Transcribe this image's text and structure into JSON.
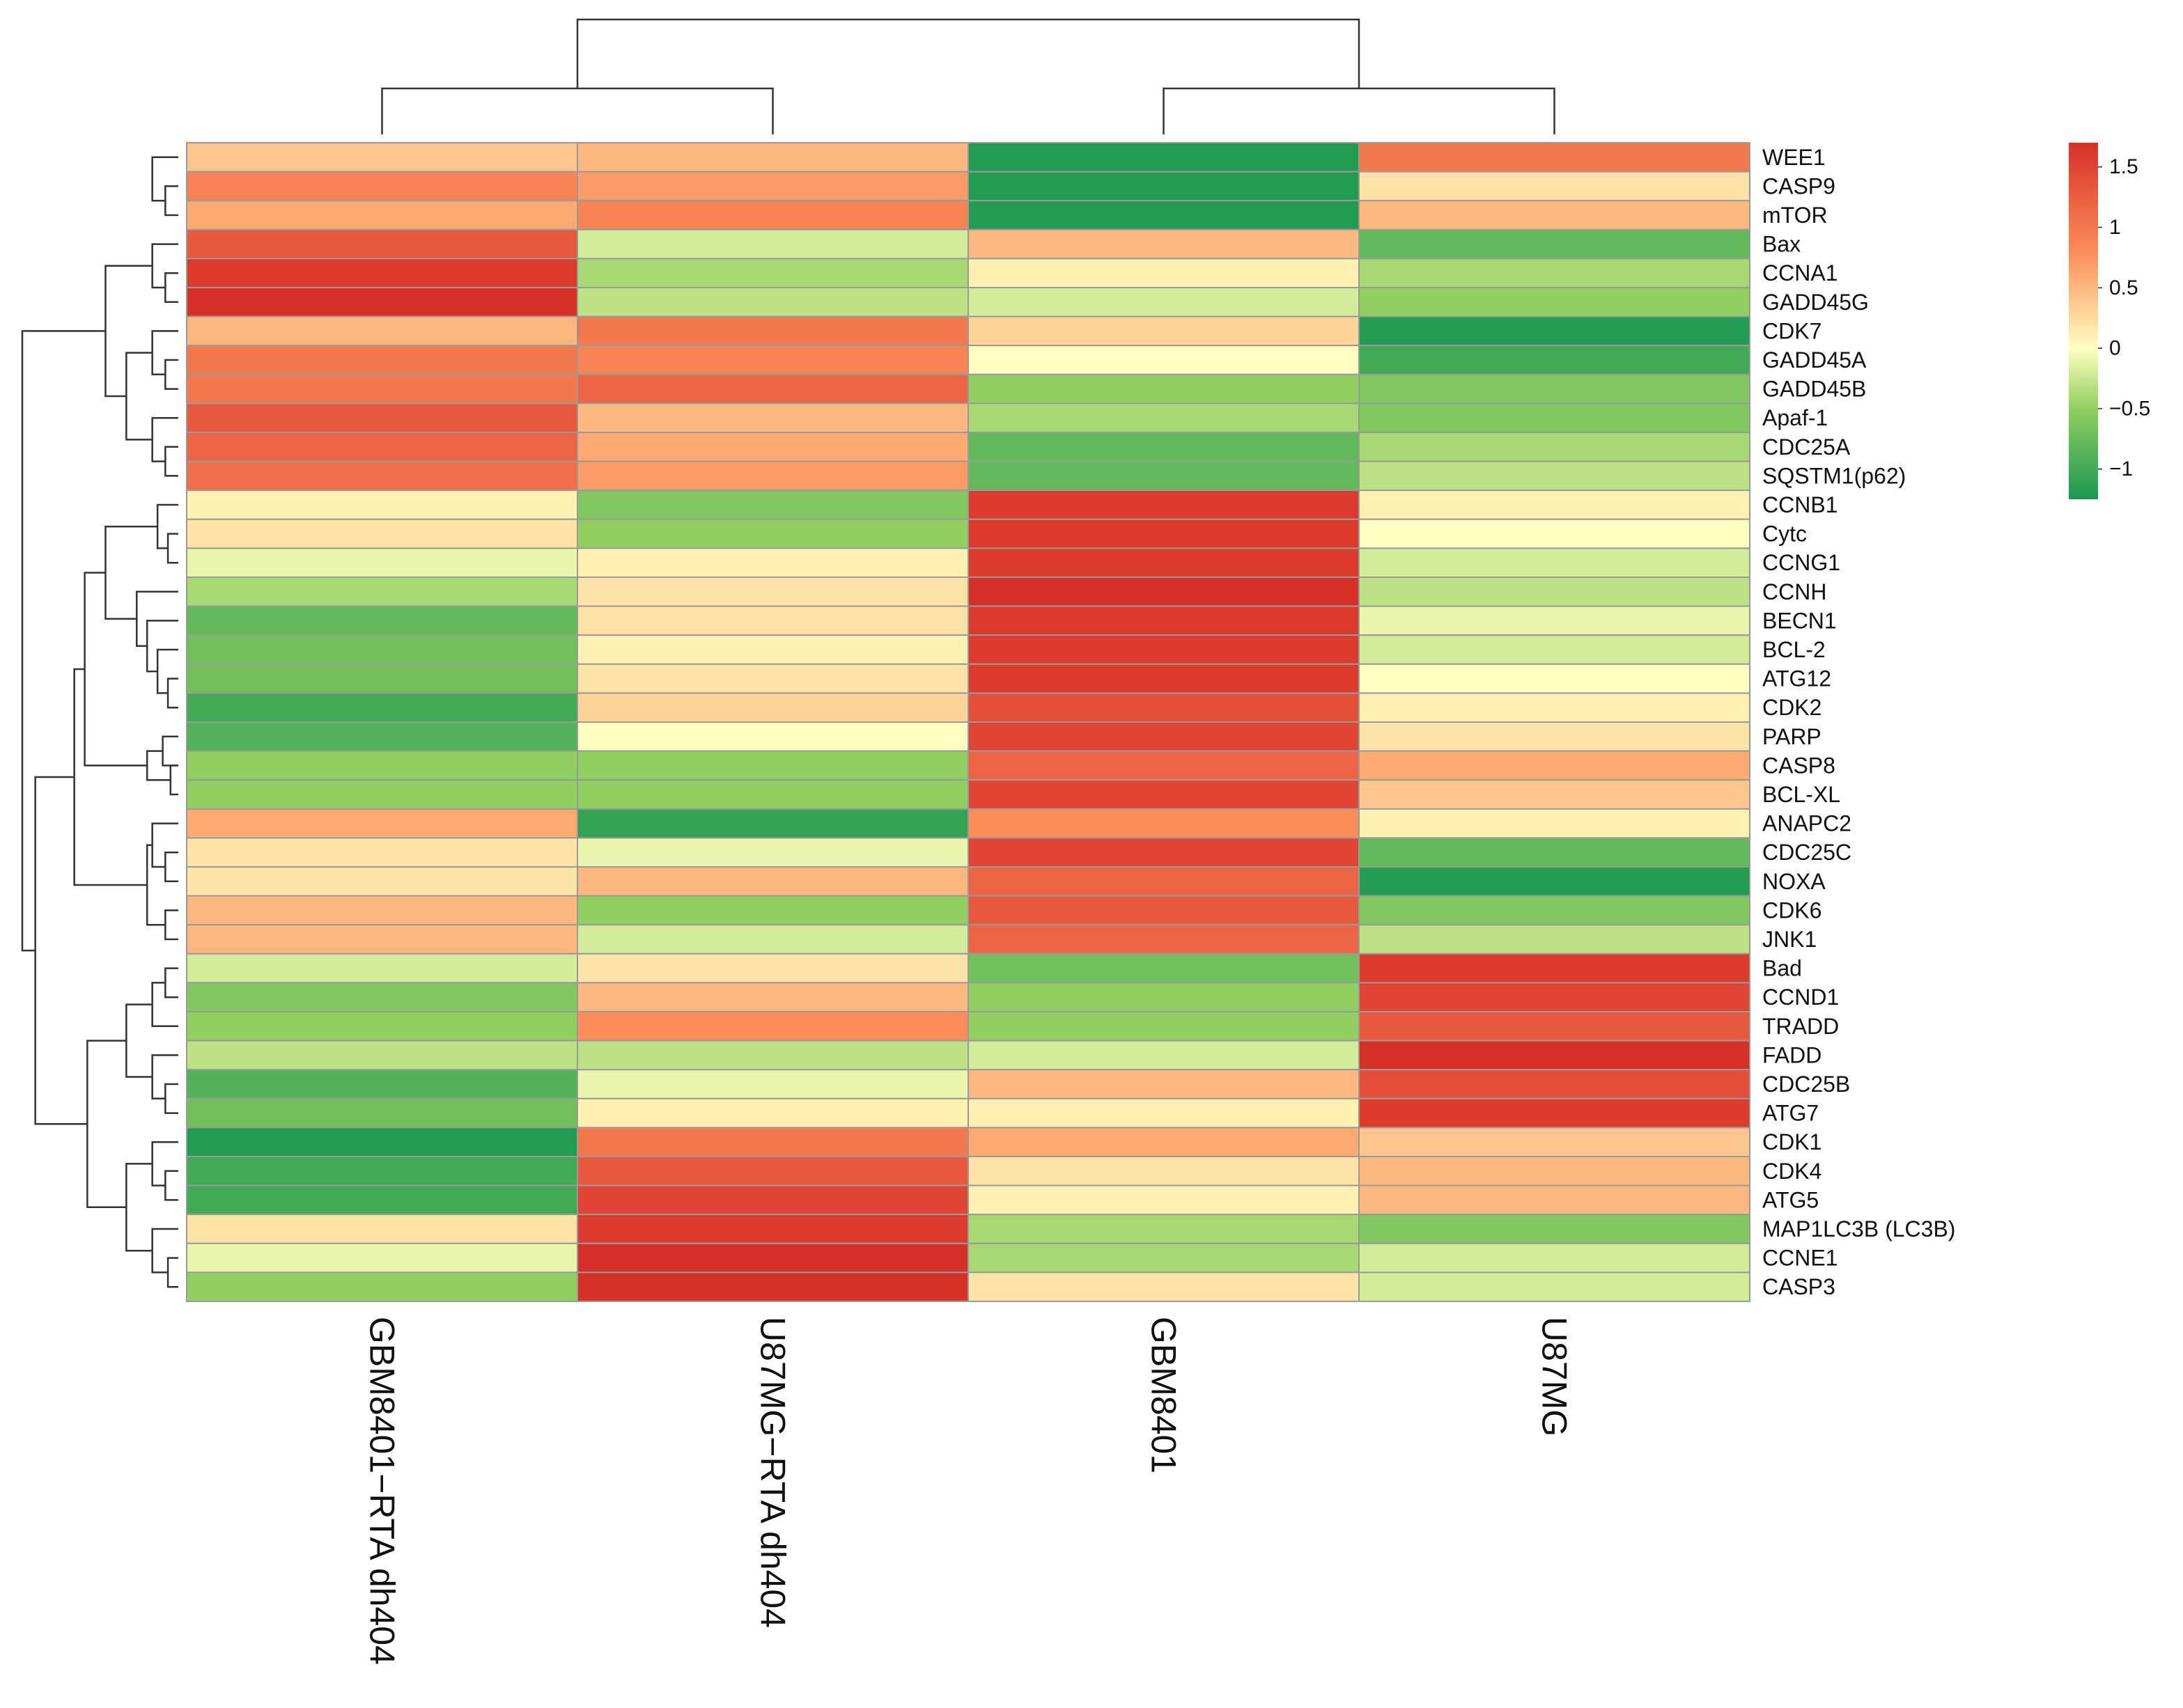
{
  "chart_data": {
    "type": "heatmap",
    "title": "",
    "columns": [
      "GBM8401−RTA dh404",
      "U87MG−RTA dh404",
      "GBM8401",
      "U87MG"
    ],
    "rows": [
      "WEE1",
      "CASP9",
      "mTOR",
      "Bax",
      "CCNA1",
      "GADD45G",
      "CDK7",
      "GADD45A",
      "GADD45B",
      "Apaf-1",
      "CDC25A",
      "SQSTM1(p62)",
      "CCNB1",
      "Cytc",
      "CCNG1",
      "CCNH",
      "BECN1",
      "BCL-2",
      "ATG12",
      "CDK2",
      "PARP",
      "CASP8",
      "BCL-XL",
      "ANAPC2",
      "CDC25C",
      "NOXA",
      "CDK6",
      "JNK1",
      "Bad",
      "CCND1",
      "TRADD",
      "FADD",
      "CDC25B",
      "ATG7",
      "CDK1",
      "CDK4",
      "ATG5",
      "MAP1LC3B (LC3B)",
      "CCNE1",
      "CASP3"
    ],
    "values": [
      [
        0.4,
        0.5,
        -1.2,
        1.0
      ],
      [
        0.9,
        0.7,
        -1.2,
        0.2
      ],
      [
        0.6,
        0.9,
        -1.2,
        0.5
      ],
      [
        1.3,
        -0.2,
        0.5,
        -0.8
      ],
      [
        1.6,
        -0.4,
        0.1,
        -0.4
      ],
      [
        1.7,
        -0.3,
        -0.2,
        -0.5
      ],
      [
        0.5,
        1.0,
        0.3,
        -1.2
      ],
      [
        1.0,
        0.9,
        0.0,
        -1.0
      ],
      [
        1.0,
        1.2,
        -0.5,
        -0.6
      ],
      [
        1.3,
        0.5,
        -0.4,
        -0.6
      ],
      [
        1.2,
        0.6,
        -0.8,
        -0.4
      ],
      [
        1.1,
        0.7,
        -0.8,
        -0.3
      ],
      [
        0.1,
        -0.6,
        1.6,
        0.1
      ],
      [
        0.2,
        -0.5,
        1.6,
        0.0
      ],
      [
        -0.1,
        0.1,
        1.6,
        -0.2
      ],
      [
        -0.4,
        0.2,
        1.7,
        -0.3
      ],
      [
        -0.8,
        0.2,
        1.6,
        -0.1
      ],
      [
        -0.7,
        0.1,
        1.6,
        -0.2
      ],
      [
        -0.7,
        0.2,
        1.6,
        0.0
      ],
      [
        -1.0,
        0.3,
        1.4,
        0.1
      ],
      [
        -0.9,
        0.0,
        1.5,
        0.2
      ],
      [
        -0.5,
        -0.5,
        1.2,
        0.6
      ],
      [
        -0.5,
        -0.5,
        1.5,
        0.4
      ],
      [
        0.6,
        -1.1,
        0.8,
        0.1
      ],
      [
        0.2,
        -0.1,
        1.5,
        -0.8
      ],
      [
        0.2,
        0.5,
        1.2,
        -1.2
      ],
      [
        0.5,
        -0.5,
        1.3,
        -0.6
      ],
      [
        0.5,
        -0.2,
        1.2,
        -0.3
      ],
      [
        -0.2,
        0.2,
        -0.7,
        1.6
      ],
      [
        -0.6,
        0.5,
        -0.5,
        1.5
      ],
      [
        -0.5,
        0.8,
        -0.5,
        1.3
      ],
      [
        -0.3,
        -0.3,
        -0.2,
        1.7
      ],
      [
        -0.9,
        -0.1,
        0.5,
        1.4
      ],
      [
        -0.7,
        0.1,
        0.1,
        1.6
      ],
      [
        -1.2,
        1.0,
        0.6,
        0.4
      ],
      [
        -1.0,
        1.3,
        0.2,
        0.5
      ],
      [
        -1.0,
        1.5,
        0.1,
        0.5
      ],
      [
        0.2,
        1.6,
        -0.4,
        -0.6
      ],
      [
        -0.1,
        1.7,
        -0.4,
        -0.2
      ],
      [
        -0.5,
        1.7,
        0.2,
        -0.2
      ]
    ],
    "color_scale": {
      "min": -1.25,
      "max": 1.7,
      "stops": [
        {
          "value": -1.25,
          "color": "#1a9850"
        },
        {
          "value": -0.5,
          "color": "#91cf60"
        },
        {
          "value": 0,
          "color": "#ffffbf"
        },
        {
          "value": 0.8,
          "color": "#fc8d59"
        },
        {
          "value": 1.7,
          "color": "#d73027"
        }
      ]
    },
    "legend_ticks": [
      1.5,
      1,
      0.5,
      0,
      -0.5,
      -1
    ],
    "legend_tick_labels": [
      "1.5",
      "1",
      "0.5",
      "0",
      "−0.5",
      "−1"
    ],
    "legend_placement": "top-right",
    "column_dendrogram": {
      "merges": [
        [
          0,
          1
        ],
        [
          2,
          3
        ],
        [
          -1,
          -2
        ]
      ],
      "heights": [
        0.4,
        0.4,
        1.0
      ]
    },
    "row_dendrogram": {
      "merges": [
        [
          1,
          2
        ],
        [
          -1,
          0
        ],
        [
          4,
          5
        ],
        [
          -3,
          3
        ],
        [
          7,
          8
        ],
        [
          6,
          -5
        ],
        [
          10,
          11
        ],
        [
          9,
          -7
        ],
        [
          -6,
          -8
        ],
        [
          -4,
          -9
        ],
        [
          13,
          14
        ],
        [
          12,
          -11
        ],
        [
          18,
          19
        ],
        [
          17,
          -13
        ],
        [
          16,
          -14
        ],
        [
          15,
          -15
        ],
        [
          -12,
          -16
        ],
        [
          21,
          22
        ],
        [
          20,
          21
        ],
        [
          -18,
          -19
        ],
        [
          24,
          25
        ],
        [
          23,
          -21
        ],
        [
          26,
          27
        ],
        [
          -22,
          -23
        ],
        [
          -17,
          -20
        ],
        [
          -25,
          -24
        ],
        [
          28,
          29
        ],
        [
          -27,
          30
        ],
        [
          32,
          33
        ],
        [
          31,
          -29
        ],
        [
          -28,
          -30
        ],
        [
          35,
          36
        ],
        [
          34,
          -32
        ],
        [
          38,
          39
        ],
        [
          37,
          -34
        ],
        [
          -33,
          -35
        ],
        [
          -31,
          -36
        ],
        [
          -26,
          -37
        ],
        [
          -10,
          -38
        ]
      ],
      "heights": [
        0.05,
        0.1,
        0.05,
        0.1,
        0.05,
        0.1,
        0.05,
        0.1,
        0.2,
        0.28,
        0.04,
        0.08,
        0.04,
        0.08,
        0.12,
        0.16,
        0.28,
        0.03,
        0.06,
        0.12,
        0.05,
        0.1,
        0.05,
        0.12,
        0.36,
        0.4,
        0.05,
        0.1,
        0.05,
        0.1,
        0.2,
        0.05,
        0.1,
        0.04,
        0.1,
        0.2,
        0.35,
        0.55,
        0.6
      ]
    }
  }
}
